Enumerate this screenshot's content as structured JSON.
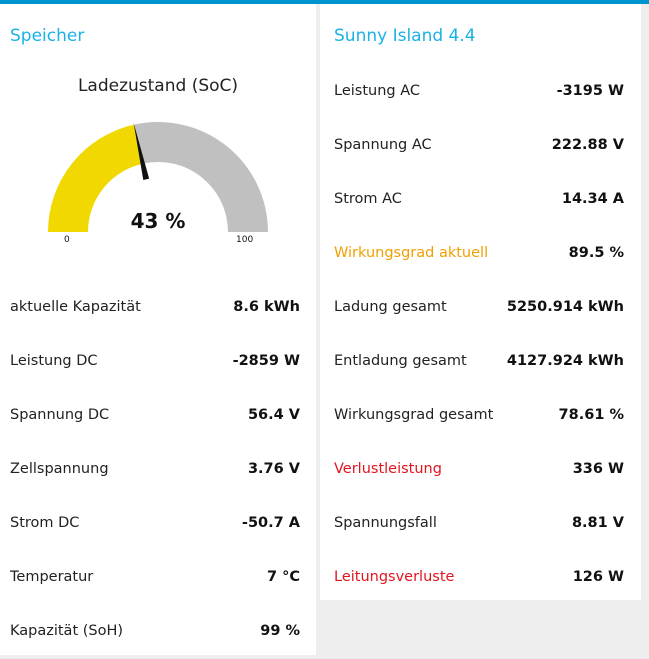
{
  "storage": {
    "title": "Speicher",
    "gauge": {
      "title": "Ladezustand (SoC)",
      "value_text": "43 %",
      "value": 43,
      "min": 0,
      "max": 100,
      "min_label": "0",
      "max_label": "100",
      "fill_color": "#f0d800",
      "track_color": "#c0c0c0",
      "needle_color": "#111111"
    },
    "rows": [
      {
        "label": "aktuelle Kapazität",
        "value": "8.6 kWh"
      },
      {
        "label": "Leistung DC",
        "value": "-2859 W"
      },
      {
        "label": "Spannung DC",
        "value": "56.4 V"
      },
      {
        "label": "Zellspannung",
        "value": "3.76 V"
      },
      {
        "label": "Strom DC",
        "value": "-50.7 A"
      },
      {
        "label": "Temperatur",
        "value": "7 °C"
      },
      {
        "label": "Kapazität (SoH)",
        "value": "99 %"
      }
    ]
  },
  "inverter": {
    "title": "Sunny Island 4.4",
    "rows": [
      {
        "label": "Leistung AC",
        "value": "-3195 W",
        "color": ""
      },
      {
        "label": "Spannung AC",
        "value": "222.88 V",
        "color": ""
      },
      {
        "label": "Strom AC",
        "value": "14.34 A",
        "color": ""
      },
      {
        "label": "Wirkungsgrad aktuell",
        "value": "89.5 %",
        "color": "orange"
      },
      {
        "label": "Ladung gesamt",
        "value": "5250.914 kWh",
        "color": ""
      },
      {
        "label": "Entladung gesamt",
        "value": "4127.924 kWh",
        "color": ""
      },
      {
        "label": "Wirkungsgrad gesamt",
        "value": "78.61 %",
        "color": ""
      },
      {
        "label": "Verlustleistung",
        "value": "336 W",
        "color": "red"
      },
      {
        "label": "Spannungsfall",
        "value": "8.81 V",
        "color": ""
      },
      {
        "label": "Leitungsverluste",
        "value": "126 W",
        "color": "red"
      }
    ]
  },
  "colors": {
    "accent_bar": "#0094ce",
    "title": "#1ab2e6",
    "warning_orange": "#f0a000",
    "alert_red": "#e3141e"
  }
}
